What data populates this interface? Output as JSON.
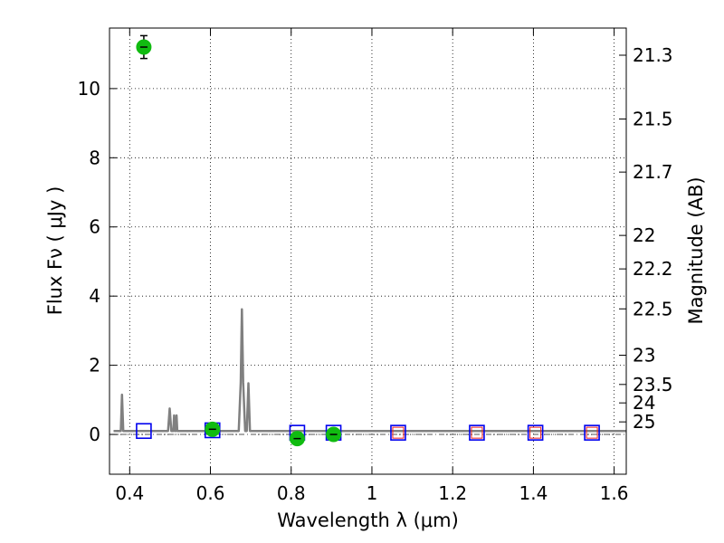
{
  "chart_data": {
    "type": "scatter",
    "xlabel": "Wavelength  λ (μm)",
    "ylabel": "Flux  Fν  ( μJy )",
    "ylabel_right": "Magnitude (AB)",
    "xlim": [
      0.35,
      1.63
    ],
    "ylim": [
      -1.15,
      11.75
    ],
    "x_ticks": [
      0.4,
      0.6,
      0.8,
      1.0,
      1.2,
      1.4,
      1.6
    ],
    "x_tick_labels": [
      "0.4",
      "0.6",
      "0.8",
      "1",
      "1.2",
      "1.4",
      "1.6"
    ],
    "y_ticks": [
      0,
      2,
      4,
      6,
      8,
      10
    ],
    "y_tick_labels": [
      "0",
      "2",
      "4",
      "6",
      "8",
      "10"
    ],
    "mag_ticks": [
      21.3,
      21.5,
      21.7,
      22,
      22.2,
      22.5,
      23,
      23.5,
      24,
      25
    ],
    "mag_tick_labels": [
      "21.3",
      "21.5",
      "21.7",
      "22",
      "22.2",
      "22.5",
      "23",
      "23.5",
      "24",
      "25"
    ],
    "grid": true,
    "dashed_zero_line": true,
    "model_spectrum": {
      "color": "#808080",
      "points": [
        [
          0.36,
          0.1
        ],
        [
          0.378,
          0.1
        ],
        [
          0.381,
          1.15
        ],
        [
          0.384,
          0.1
        ],
        [
          0.495,
          0.1
        ],
        [
          0.499,
          0.75
        ],
        [
          0.503,
          0.1
        ],
        [
          0.508,
          0.1
        ],
        [
          0.51,
          0.55
        ],
        [
          0.512,
          0.1
        ],
        [
          0.514,
          0.1
        ],
        [
          0.516,
          0.55
        ],
        [
          0.518,
          0.1
        ],
        [
          0.67,
          0.1
        ],
        [
          0.675,
          1.5
        ],
        [
          0.678,
          3.62
        ],
        [
          0.681,
          1.5
        ],
        [
          0.686,
          0.1
        ],
        [
          0.69,
          0.1
        ],
        [
          0.694,
          1.48
        ],
        [
          0.698,
          0.1
        ],
        [
          1.63,
          0.1
        ]
      ]
    },
    "observed": {
      "color": "#11bb11",
      "points": [
        {
          "x": 0.435,
          "y": 11.2,
          "yerr": 0.33
        },
        {
          "x": 0.605,
          "y": 0.15,
          "yerr": 0.06
        },
        {
          "x": 0.815,
          "y": -0.12,
          "yerr": 0.06
        },
        {
          "x": 0.905,
          "y": 0.0,
          "yerr": 0.06
        }
      ]
    },
    "model_boxes": {
      "color": "#0000ee",
      "points": [
        {
          "x": 0.435,
          "y": 0.1
        },
        {
          "x": 0.605,
          "y": 0.12
        },
        {
          "x": 0.815,
          "y": 0.05
        },
        {
          "x": 0.905,
          "y": 0.05
        },
        {
          "x": 1.065,
          "y": 0.05
        },
        {
          "x": 1.26,
          "y": 0.05
        },
        {
          "x": 1.405,
          "y": 0.05
        },
        {
          "x": 1.545,
          "y": 0.05
        }
      ]
    },
    "upper_limit_boxes": {
      "color": "#ee2222",
      "points": [
        {
          "x": 1.065,
          "y": 0.05
        },
        {
          "x": 1.26,
          "y": 0.05
        },
        {
          "x": 1.405,
          "y": 0.05
        },
        {
          "x": 1.545,
          "y": 0.05
        }
      ]
    }
  }
}
